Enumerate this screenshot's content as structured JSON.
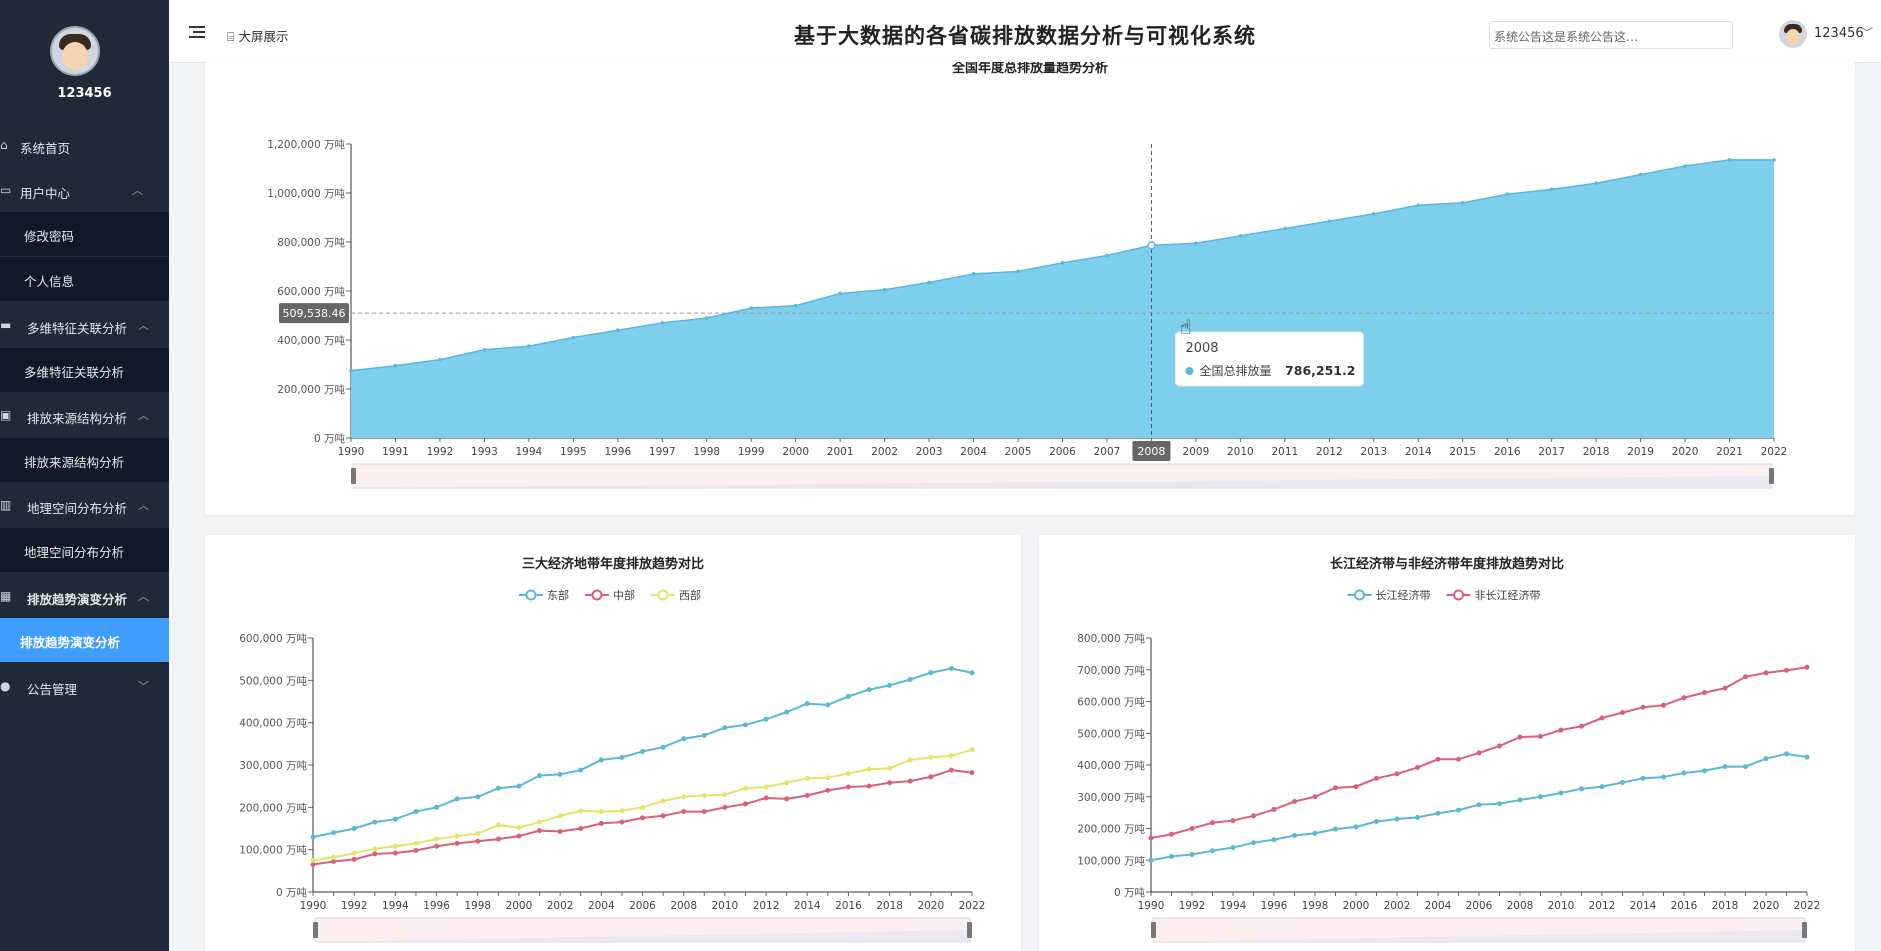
{
  "sidebar": {
    "username": "123456",
    "items": [
      {
        "label": "系统首页",
        "icon": "home-icon"
      },
      {
        "label": "用户中心",
        "icon": "user-card-icon"
      },
      {
        "label": "修改密码"
      },
      {
        "label": "个人信息"
      },
      {
        "label": "多维特征关联分析",
        "icon": "monitor-icon"
      },
      {
        "label": "多维特征关联分析"
      },
      {
        "label": "排放来源结构分析",
        "icon": "clipboard-icon"
      },
      {
        "label": "排放来源结构分析"
      },
      {
        "label": "地理空间分布分析",
        "icon": "bar-chart-icon"
      },
      {
        "label": "地理空间分布分析"
      },
      {
        "label": "排放趋势演变分析",
        "icon": "grid-icon"
      },
      {
        "label": "排放趋势演变分析"
      },
      {
        "label": "公告管理",
        "icon": "person-icon"
      }
    ]
  },
  "topbar": {
    "screen_label": "大屏展示",
    "title": "基于大数据的各省碳排放数据分析与可视化系统",
    "notice": "系统公告这是系统公告这…",
    "username": "123456"
  },
  "chart_data": [
    {
      "type": "area",
      "title": "全国年度总排放量趋势分析",
      "unit": "万吨",
      "x": [
        1990,
        1991,
        1992,
        1993,
        1994,
        1995,
        1996,
        1997,
        1998,
        1999,
        2000,
        2001,
        2002,
        2003,
        2004,
        2005,
        2006,
        2007,
        2008,
        2009,
        2010,
        2011,
        2012,
        2013,
        2014,
        2015,
        2016,
        2017,
        2018,
        2019,
        2020,
        2021,
        2022
      ],
      "series": [
        {
          "name": "全国总排放量",
          "values": [
            275000,
            295000,
            320000,
            360000,
            375000,
            410000,
            440000,
            470000,
            490000,
            530000,
            540000,
            590000,
            605000,
            635000,
            670000,
            680000,
            715000,
            745000,
            786251.2,
            795000,
            825000,
            855000,
            885000,
            915000,
            950000,
            960000,
            995000,
            1015000,
            1040000,
            1075000,
            1110000,
            1135000,
            1135000
          ]
        }
      ],
      "ylim": [
        0,
        1200000
      ],
      "yticks": [
        "0 万吨",
        "200,000 万吨",
        "400,000 万吨",
        "600,000 万吨",
        "800,000 万吨",
        "1,000,000 万吨",
        "1,200,000 万吨"
      ],
      "crosshair": {
        "y_label": "509,538.46",
        "x_label": "2008"
      },
      "tooltip": {
        "year": "2008",
        "series": "全国总排放量",
        "value": "786,251.2"
      },
      "colors": {
        "area": "#7ecfec",
        "line": "#5ab8dc"
      }
    },
    {
      "type": "line",
      "title": "三大经济地带年度排放趋势对比",
      "unit": "万吨",
      "x": [
        1990,
        1991,
        1992,
        1993,
        1994,
        1995,
        1996,
        1997,
        1998,
        1999,
        2000,
        2001,
        2002,
        2003,
        2004,
        2005,
        2006,
        2007,
        2008,
        2009,
        2010,
        2011,
        2012,
        2013,
        2014,
        2015,
        2016,
        2017,
        2018,
        2019,
        2020,
        2021,
        2022
      ],
      "xticks": [
        "1990",
        "1992",
        "1994",
        "1996",
        "1998",
        "2000",
        "2002",
        "2004",
        "2006",
        "2008",
        "2010",
        "2012",
        "2014",
        "2016",
        "2018",
        "2020",
        "2022"
      ],
      "ylim": [
        0,
        600000
      ],
      "yticks": [
        "0 万吨",
        "100,000 万吨",
        "200,000 万吨",
        "300,000 万吨",
        "400,000 万吨",
        "500,000 万吨",
        "600,000 万吨"
      ],
      "series": [
        {
          "name": "东部",
          "color": "#5ab8d0",
          "values": [
            130000,
            140000,
            150000,
            165000,
            172000,
            190000,
            200000,
            220000,
            225000,
            245000,
            250000,
            275000,
            278000,
            288000,
            312000,
            318000,
            332000,
            342000,
            362000,
            370000,
            388000,
            395000,
            408000,
            425000,
            445000,
            442000,
            462000,
            478000,
            488000,
            502000,
            518000,
            528000,
            518000
          ]
        },
        {
          "name": "中部",
          "color": "#d9607a",
          "values": [
            65000,
            72000,
            77000,
            90000,
            92000,
            98000,
            108000,
            115000,
            120000,
            125000,
            132000,
            145000,
            143000,
            150000,
            162000,
            165000,
            175000,
            180000,
            190000,
            190000,
            200000,
            208000,
            222000,
            220000,
            228000,
            240000,
            248000,
            250000,
            258000,
            262000,
            272000,
            288000,
            282000
          ]
        },
        {
          "name": "西部",
          "color": "#e6e36a",
          "values": [
            75000,
            82000,
            92000,
            102000,
            108000,
            115000,
            125000,
            132000,
            138000,
            158000,
            152000,
            165000,
            180000,
            192000,
            190000,
            192000,
            200000,
            215000,
            225000,
            228000,
            230000,
            245000,
            248000,
            258000,
            268000,
            270000,
            280000,
            290000,
            292000,
            312000,
            318000,
            322000,
            336000
          ]
        }
      ]
    },
    {
      "type": "line",
      "title": "长江经济带与非经济带年度排放趋势对比",
      "unit": "万吨",
      "x": [
        1990,
        1991,
        1992,
        1993,
        1994,
        1995,
        1996,
        1997,
        1998,
        1999,
        2000,
        2001,
        2002,
        2003,
        2004,
        2005,
        2006,
        2007,
        2008,
        2009,
        2010,
        2011,
        2012,
        2013,
        2014,
        2015,
        2016,
        2017,
        2018,
        2019,
        2020,
        2021,
        2022
      ],
      "xticks": [
        "1990",
        "1992",
        "1994",
        "1996",
        "1998",
        "2000",
        "2002",
        "2004",
        "2006",
        "2008",
        "2010",
        "2012",
        "2014",
        "2016",
        "2018",
        "2020",
        "2022"
      ],
      "ylim": [
        0,
        800000
      ],
      "yticks": [
        "0 万吨",
        "100,000 万吨",
        "200,000 万吨",
        "300,000 万吨",
        "400,000 万吨",
        "500,000 万吨",
        "600,000 万吨",
        "700,000 万吨",
        "800,000 万吨"
      ],
      "series": [
        {
          "name": "长江经济带",
          "color": "#5ab8d0",
          "values": [
            100000,
            112000,
            118000,
            130000,
            140000,
            155000,
            165000,
            178000,
            185000,
            198000,
            205000,
            222000,
            230000,
            235000,
            248000,
            258000,
            275000,
            278000,
            290000,
            300000,
            312000,
            325000,
            332000,
            345000,
            358000,
            362000,
            375000,
            382000,
            395000,
            395000,
            420000,
            435000,
            425000
          ]
        },
        {
          "name": "非长江经济带",
          "color": "#d9607a",
          "values": [
            170000,
            182000,
            200000,
            218000,
            225000,
            240000,
            260000,
            285000,
            300000,
            328000,
            332000,
            358000,
            372000,
            392000,
            418000,
            418000,
            438000,
            460000,
            488000,
            490000,
            510000,
            522000,
            548000,
            565000,
            582000,
            588000,
            612000,
            628000,
            642000,
            678000,
            690000,
            698000,
            708000
          ]
        }
      ]
    }
  ]
}
